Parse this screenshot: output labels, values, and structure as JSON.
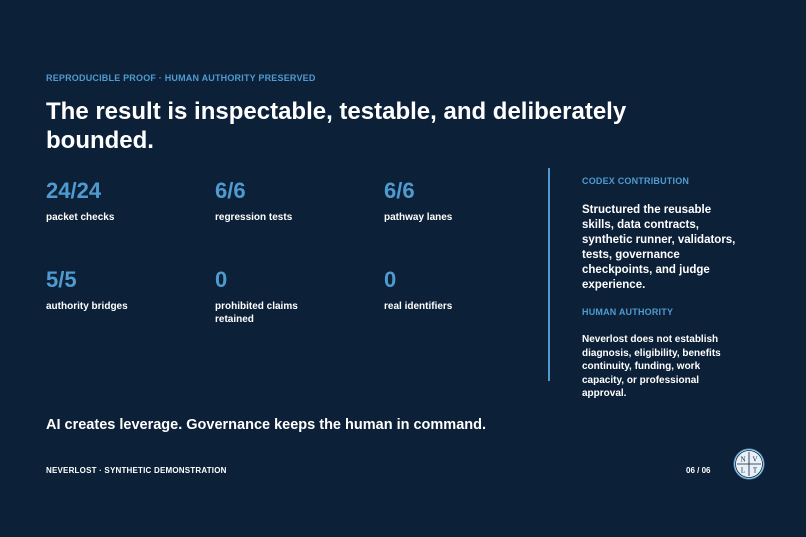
{
  "header": {
    "eyebrow": "REPRODUCIBLE PROOF · HUMAN AUTHORITY PRESERVED",
    "title": "The result is inspectable, testable, and deliberately bounded."
  },
  "metrics": [
    {
      "value": "24/24",
      "label": "packet checks"
    },
    {
      "value": "6/6",
      "label": "regression tests"
    },
    {
      "value": "6/6",
      "label": "pathway lanes"
    },
    {
      "value": "5/5",
      "label": "authority bridges"
    },
    {
      "value": "0",
      "label": "prohibited claims retained"
    },
    {
      "value": "0",
      "label": "real identifiers"
    }
  ],
  "sidebar": {
    "codex_heading": "CODEX CONTRIBUTION",
    "codex_text": "Structured the reusable skills, data contracts, synthetic runner, validators, tests, governance checkpoints, and judge experience.",
    "authority_heading": "HUMAN AUTHORITY",
    "authority_text": "Neverlost does not establish diagnosis, eligibility, benefits continuity, funding, work capacity, or professional approval."
  },
  "tagline": "AI creates leverage. Governance keeps the human in command.",
  "footer": {
    "left": "NEVERLOST · SYNTHETIC DEMONSTRATION",
    "page": "06 / 06",
    "logo_letters": [
      "N",
      "V",
      "L",
      "T"
    ]
  },
  "colors": {
    "background": "#0c2038",
    "accent": "#4f9bd0",
    "text": "#ffffff"
  }
}
